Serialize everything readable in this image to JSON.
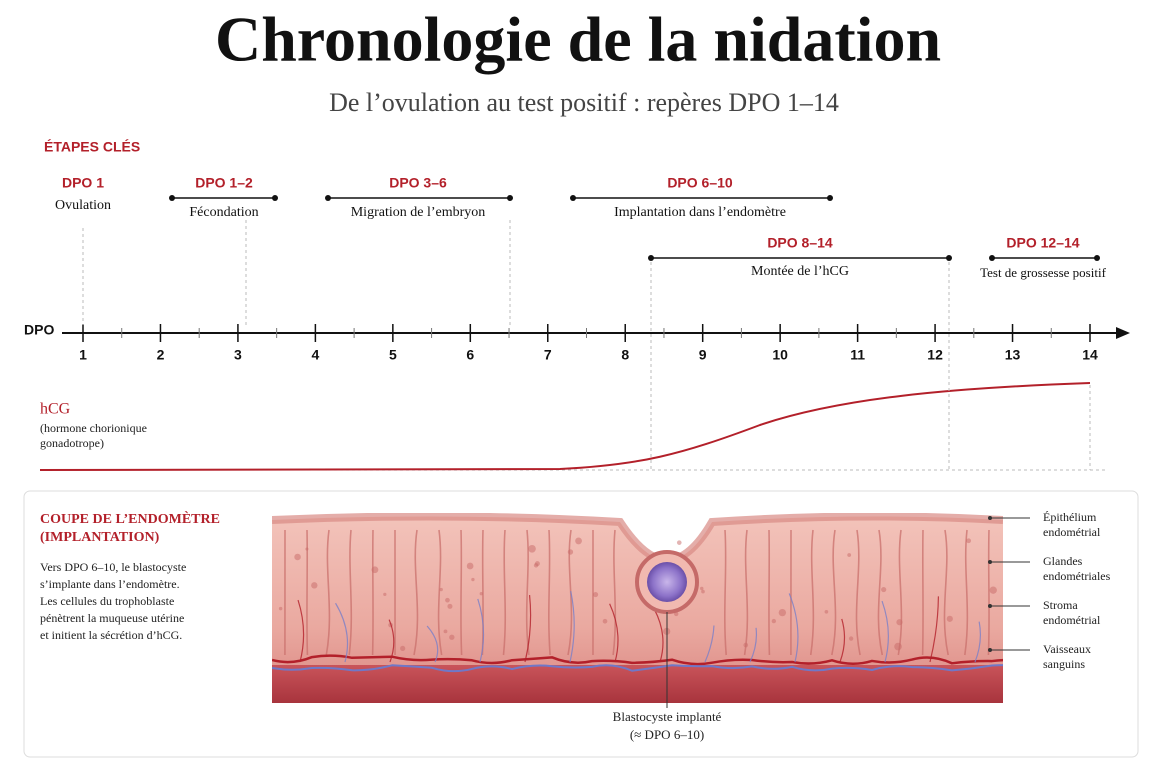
{
  "header": {
    "title": "Chronologie de la nidation",
    "subtitle": "De l’ovulation au test positif : repères DPO 1–14"
  },
  "timeline": {
    "section_label": "ÉTAPES CLÉS",
    "axis_label": "DPO",
    "ticks": [
      "1",
      "2",
      "3",
      "4",
      "5",
      "6",
      "7",
      "8",
      "9",
      "10",
      "11",
      "12",
      "13",
      "14"
    ],
    "phases": [
      {
        "range": "DPO 1",
        "label": "Ovulation"
      },
      {
        "range": "DPO 1–2",
        "label": "Fécondation"
      },
      {
        "range": "DPO 3–6",
        "label": "Migration de l’embryon"
      },
      {
        "range": "DPO 6–10",
        "label": "Implantation dans l’endomètre"
      },
      {
        "range": "DPO 8–14",
        "label": "Montée de l’hCG"
      },
      {
        "range": "DPO 12–14",
        "label": "Test de grossesse positif"
      }
    ]
  },
  "hcg": {
    "label": "hCG",
    "description_lines": [
      "(hormone chorionique",
      "gonadotrope)"
    ]
  },
  "panel": {
    "title_lines": [
      "COUPE DE L’ENDOMÈTRE",
      "(IMPLANTATION)"
    ],
    "body_lines": [
      "Vers DPO 6–10, le blastocyste",
      "s’implante dans l’endomètre.",
      "Les cellules du trophoblaste",
      "pénètrent la muqueuse utérine",
      "et initient la sécrétion d’hCG."
    ],
    "labels": [
      {
        "lines": [
          "Épithélium",
          "endométrial"
        ]
      },
      {
        "lines": [
          "Glandes",
          "endométriales"
        ]
      },
      {
        "lines": [
          "Stroma",
          "endométrial"
        ]
      },
      {
        "lines": [
          "Vaisseaux",
          "sanguins"
        ]
      }
    ],
    "blastocyst_label_lines": [
      "Blastocyste implanté",
      "(≈ DPO 6–10)"
    ]
  }
}
